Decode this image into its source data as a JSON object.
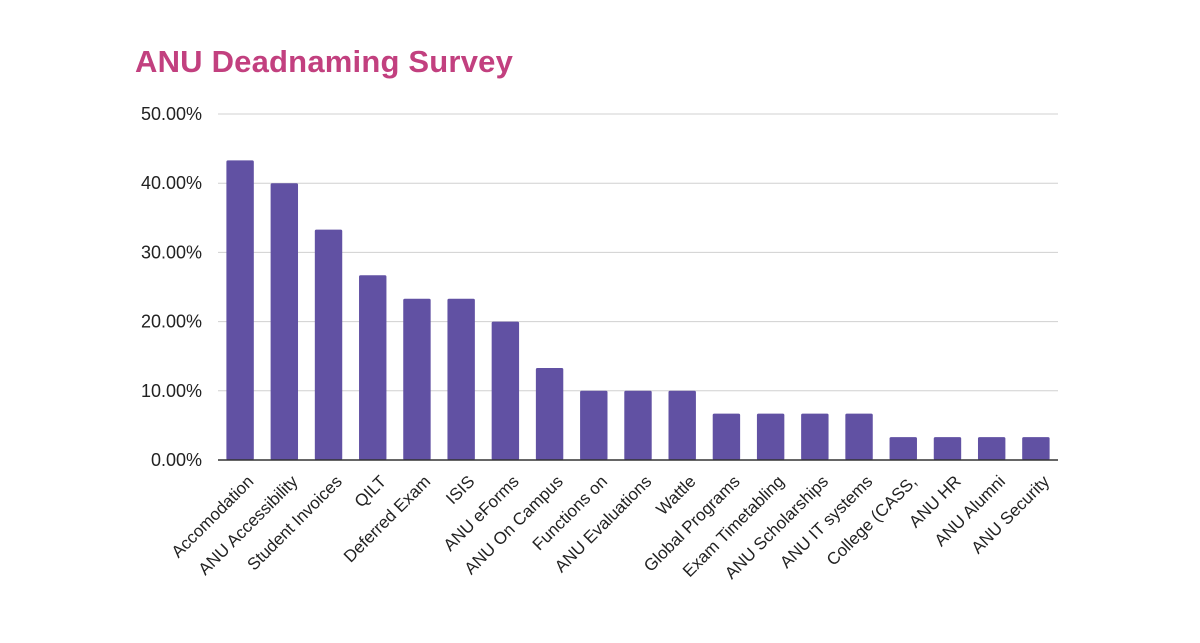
{
  "chart_data": {
    "type": "bar",
    "title": "ANU Deadnaming Survey",
    "xlabel": "",
    "ylabel": "",
    "categories": [
      "Accomodation",
      "ANU Accessibility",
      "Student Invoices",
      "QILT",
      "Deferred Exam",
      "ISIS",
      "ANU eForms",
      "ANU On Campus",
      "Functions on",
      "ANU Evaluations",
      "Wattle",
      "Global Programs",
      "Exam Timetabling",
      "ANU Scholarships",
      "ANU IT systems",
      "College (CASS,",
      "ANU HR",
      "ANU Alumni",
      "ANU Security"
    ],
    "values": [
      43.3,
      40.0,
      33.3,
      26.7,
      23.3,
      23.3,
      20.0,
      13.3,
      10.0,
      10.0,
      10.0,
      6.7,
      6.7,
      6.7,
      6.7,
      3.3,
      3.3,
      3.3,
      3.3
    ],
    "ylim": [
      0,
      50
    ],
    "yticks": [
      0,
      10,
      20,
      30,
      40,
      50
    ],
    "ytick_labels": [
      "0.00%",
      "10.00%",
      "20.00%",
      "30.00%",
      "40.00%",
      "50.00%"
    ],
    "grid": true,
    "legend": "none",
    "colors": {
      "bar": "#6151a3",
      "title": "#c2407f",
      "grid": "#d0d0d0",
      "axis": "#333333"
    }
  }
}
